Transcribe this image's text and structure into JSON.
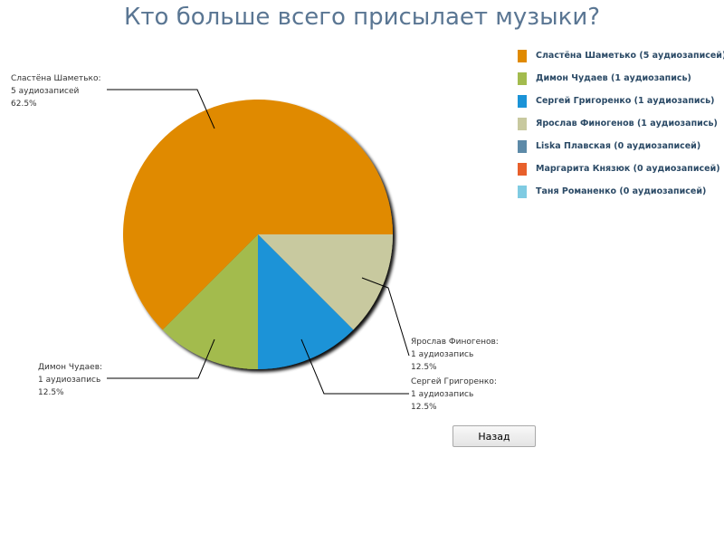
{
  "page": {
    "title": "Кто больше всего присылает музыки?"
  },
  "chart_data": {
    "type": "pie",
    "title": "Кто больше всего присылает музыки?",
    "categories": [
      "Сластёна Шаметько",
      "Димон Чудаев",
      "Сергей Григоренко",
      "Ярослав Финогенов",
      "Liska Плавская",
      "Маргарита Князюк",
      "Таня Романенко"
    ],
    "values": [
      5,
      1,
      1,
      1,
      0,
      0,
      0
    ],
    "percentages": [
      62.5,
      12.5,
      12.5,
      12.5,
      0,
      0,
      0
    ],
    "colors": [
      "#e08a00",
      "#a3bb4e",
      "#1b93d7",
      "#c8c99f",
      "#5d8aa8",
      "#e8602b",
      "#7fcbe2"
    ],
    "legend_position": "right",
    "unit": "аудиозаписей"
  },
  "labels": [
    {
      "name": "Сластёна Шаметько:",
      "count": "5 аудиозаписей",
      "percent": "62.5%"
    },
    {
      "name": "Димон Чудаев:",
      "count": "1 аудиозапись",
      "percent": "12.5%"
    },
    {
      "name": "Ярослав Финогенов:",
      "count": "1 аудиозапись",
      "percent": "12.5%"
    },
    {
      "name": "Сергей Григоренко:",
      "count": "1 аудиозапись",
      "percent": "12.5%"
    }
  ],
  "legend": {
    "items": [
      {
        "label": "Сластёна Шаметько (5 аудиозаписей)",
        "color": "#e08a00"
      },
      {
        "label": "Димон Чудаев (1 аудиозапись)",
        "color": "#a3bb4e"
      },
      {
        "label": "Сергей Григоренко (1 аудиозапись)",
        "color": "#1b93d7"
      },
      {
        "label": "Ярослав Финогенов (1 аудиозапись)",
        "color": "#c8c99f"
      },
      {
        "label": "Liska Плавская (0 аудиозаписей)",
        "color": "#5d8aa8"
      },
      {
        "label": "Маргарита Князюк (0 аудиозаписей)",
        "color": "#e8602b"
      },
      {
        "label": "Таня Романенко (0 аудиозаписей)",
        "color": "#7fcbe2"
      }
    ]
  },
  "buttons": {
    "back_label": "Назад"
  }
}
